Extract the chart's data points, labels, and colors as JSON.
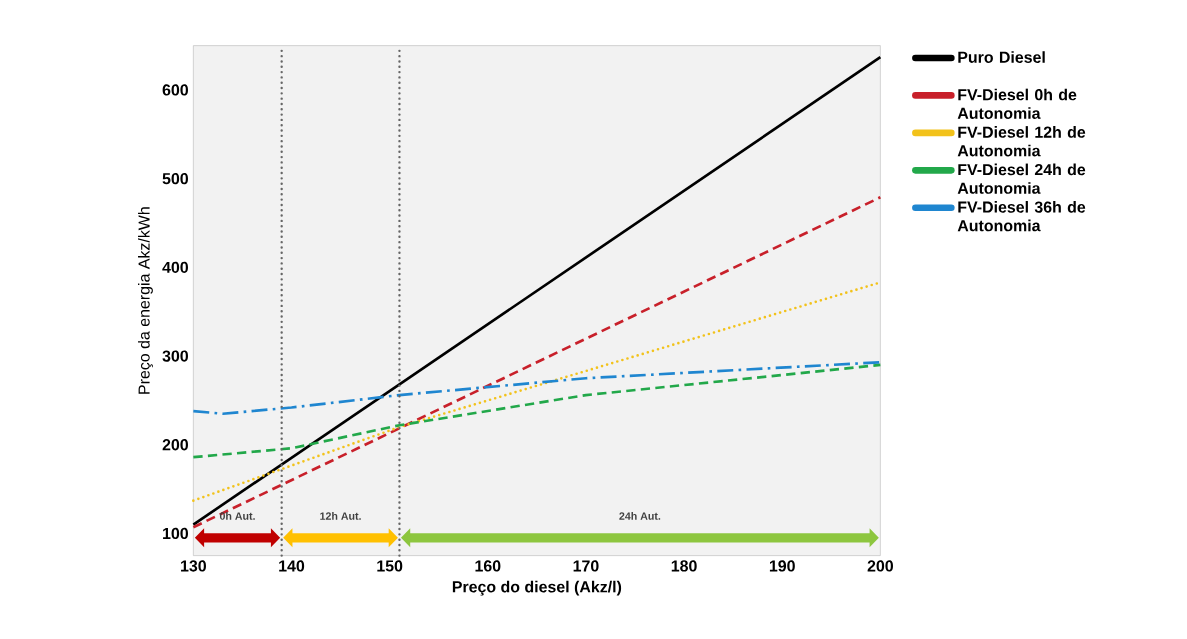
{
  "chart_data": {
    "type": "line",
    "xlabel": "Preço do diesel (Akz/l)",
    "ylabel": "Preço da energia Akz/kWh",
    "xlim": [
      130,
      200
    ],
    "ylim": [
      75,
      650
    ],
    "xticks": [
      130,
      140,
      150,
      160,
      170,
      180,
      190,
      200
    ],
    "yticks": [
      100,
      200,
      300,
      400,
      500,
      600
    ],
    "legend": "right",
    "grid": false,
    "series": [
      {
        "name": "Puro Diesel",
        "color": "#000000",
        "line_style": "solid",
        "x": [
          130,
          200
        ],
        "values": [
          110,
          637
        ]
      },
      {
        "name": "FV-Diesel 0h de Autonomia",
        "color": "#c8202a",
        "line_style": "dashed",
        "x": [
          130,
          200
        ],
        "values": [
          107,
          479
        ]
      },
      {
        "name": "FV-Diesel 12h de Autonomia",
        "color": "#f2c21b",
        "line_style": "dotted",
        "x": [
          130,
          151,
          200
        ],
        "values": [
          137,
          220,
          383
        ]
      },
      {
        "name": "FV-Diesel 24h de Autonomia",
        "color": "#22a84a",
        "line_style": "dashed",
        "x": [
          130,
          140,
          151,
          170,
          200
        ],
        "values": [
          186,
          196,
          222,
          256,
          290
        ]
      },
      {
        "name": "FV-Diesel 36h de Autonomia",
        "color": "#1f86d0",
        "line_style": "dashdot",
        "x": [
          130,
          133,
          140,
          151,
          170,
          200
        ],
        "values": [
          238,
          235,
          242,
          256,
          275,
          293
        ]
      }
    ],
    "ref_lines": [
      {
        "axis": "x",
        "value": 139,
        "color": "#666666",
        "line_style": "dotted"
      },
      {
        "axis": "x",
        "value": 151,
        "color": "#666666",
        "line_style": "dotted"
      }
    ],
    "annotations": [
      "0h Aut.",
      "12h Aut.",
      "24h Aut."
    ]
  }
}
